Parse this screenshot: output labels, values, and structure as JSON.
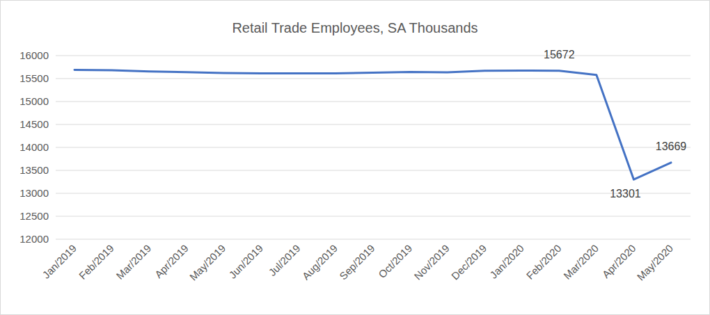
{
  "chart_data": {
    "type": "line",
    "title": "Retail Trade Employees, SA Thousands",
    "categories": [
      "Jan/2019",
      "Feb/2019",
      "Mar/2019",
      "Apr/2019",
      "May/2019",
      "Jun/2019",
      "Jul/2019",
      "Aug/2019",
      "Sep/2019",
      "Oct/2019",
      "Nov/2019",
      "Dec/2019",
      "Jan/2020",
      "Feb/2020",
      "Mar/2020",
      "Apr/2020",
      "May/2020"
    ],
    "values": [
      15690,
      15680,
      15655,
      15640,
      15620,
      15615,
      15615,
      15615,
      15630,
      15645,
      15635,
      15670,
      15675,
      15672,
      15580,
      13301,
      13669
    ],
    "value_labels": [
      null,
      null,
      null,
      null,
      null,
      null,
      null,
      null,
      null,
      null,
      null,
      null,
      null,
      "15672",
      null,
      "13301",
      "13669"
    ],
    "data_labels": true,
    "color": "#4472c4",
    "ylim": [
      12000,
      16000
    ],
    "yticks": [
      12000,
      12500,
      13000,
      13500,
      14000,
      14500,
      15000,
      15500,
      16000
    ],
    "grid": true
  }
}
